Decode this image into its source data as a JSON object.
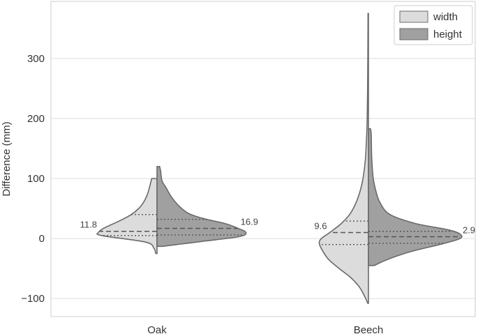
{
  "chart_data": {
    "type": "violin",
    "split": true,
    "xlabel": "",
    "ylabel": "Difference (mm)",
    "ylim": [
      -130,
      395
    ],
    "yticks": [
      -100,
      0,
      100,
      200,
      300
    ],
    "ytick_labels": [
      "−100",
      "0",
      "100",
      "200",
      "300"
    ],
    "grid": true,
    "legend_position": "top-right",
    "categories": [
      "Oak",
      "Beech"
    ],
    "series": [
      {
        "name": "width",
        "color": "#dcdcdc",
        "groups": [
          {
            "category": "Oak",
            "profile": [
              [
                -25,
                0.012
              ],
              [
                -16,
                0.03
              ],
              [
                -6,
                0.11
              ],
              [
                5,
                0.53
              ],
              [
                10,
                0.56
              ],
              [
                16,
                0.52
              ],
              [
                22,
                0.45
              ],
              [
                30,
                0.35
              ],
              [
                40,
                0.245
              ],
              [
                50,
                0.175
              ],
              [
                60,
                0.13
              ],
              [
                70,
                0.1
              ],
              [
                80,
                0.08
              ],
              [
                90,
                0.065
              ],
              [
                100,
                0.05
              ]
            ],
            "quartiles": {
              "q1": 5,
              "median": 12,
              "q3": 40
            },
            "median_label": "11.8"
          },
          {
            "category": "Beech",
            "profile": [
              [
                -108,
                0.006
              ],
              [
                -95,
                0.04
              ],
              [
                -80,
                0.09
              ],
              [
                -65,
                0.17
              ],
              [
                -50,
                0.28
              ],
              [
                -35,
                0.38
              ],
              [
                -20,
                0.44
              ],
              [
                -8,
                0.47
              ],
              [
                0,
                0.45
              ],
              [
                10,
                0.37
              ],
              [
                25,
                0.26
              ],
              [
                40,
                0.18
              ],
              [
                60,
                0.118
              ],
              [
                80,
                0.078
              ],
              [
                100,
                0.052
              ],
              [
                130,
                0.03
              ],
              [
                160,
                0.02
              ],
              [
                200,
                0.012
              ],
              [
                250,
                0.008
              ],
              [
                300,
                0.006
              ],
              [
                375,
                0.004
              ]
            ],
            "quartiles": {
              "q1": -10,
              "median": 10,
              "q3": 29
            },
            "median_label": "9.6"
          }
        ]
      },
      {
        "name": "height",
        "color": "#a0a0a0",
        "groups": [
          {
            "category": "Oak",
            "profile": [
              [
                -13,
                0.05
              ],
              [
                -5,
                0.42
              ],
              [
                3,
                0.78
              ],
              [
                10,
                0.85
              ],
              [
                18,
                0.76
              ],
              [
                25,
                0.65
              ],
              [
                33,
                0.45
              ],
              [
                42,
                0.3
              ],
              [
                55,
                0.205
              ],
              [
                70,
                0.135
              ],
              [
                85,
                0.085
              ],
              [
                95,
                0.05
              ],
              [
                104,
                0.04
              ],
              [
                112,
                0.035
              ],
              [
                120,
                0.025
              ]
            ],
            "quartiles": {
              "q1": 6,
              "median": 17,
              "q3": 32
            },
            "median_label": "16.9"
          },
          {
            "category": "Beech",
            "profile": [
              [
                -45,
                0.055
              ],
              [
                -35,
                0.18
              ],
              [
                -22,
                0.4
              ],
              [
                -10,
                0.68
              ],
              [
                0,
                0.875
              ],
              [
                8,
                0.87
              ],
              [
                15,
                0.75
              ],
              [
                25,
                0.45
              ],
              [
                40,
                0.205
              ],
              [
                60,
                0.11
              ],
              [
                80,
                0.07
              ],
              [
                100,
                0.046
              ],
              [
                120,
                0.036
              ],
              [
                140,
                0.03
              ],
              [
                160,
                0.028
              ],
              [
                175,
                0.026
              ],
              [
                183,
                0.02
              ]
            ],
            "quartiles": {
              "q1": -8,
              "median": 3,
              "q3": 12
            },
            "median_label": "2.9"
          }
        ]
      }
    ]
  }
}
